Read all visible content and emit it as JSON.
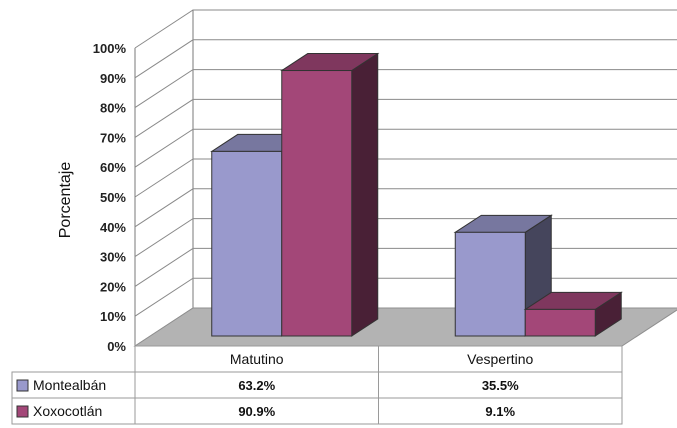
{
  "chart_data": {
    "type": "bar",
    "style": "3d-clustered-column-with-data-table",
    "title": "",
    "ylabel": "Porcentaje",
    "xlabel": "",
    "ylim": [
      0,
      100
    ],
    "yticks": [
      "0%",
      "10%",
      "20%",
      "30%",
      "40%",
      "50%",
      "60%",
      "70%",
      "80%",
      "90%",
      "100%"
    ],
    "grid": true,
    "categories": [
      "Matutino",
      "Vespertino"
    ],
    "series": [
      {
        "name": "Montealbán",
        "values": [
          63.2,
          35.5
        ],
        "labels": [
          "63.2%",
          "35.5%"
        ],
        "color": "#9999CC"
      },
      {
        "name": "Xoxocotlán",
        "values": [
          90.9,
          9.1
        ],
        "labels": [
          "90.9%",
          "9.1%"
        ],
        "color": "#A34778"
      }
    ]
  }
}
